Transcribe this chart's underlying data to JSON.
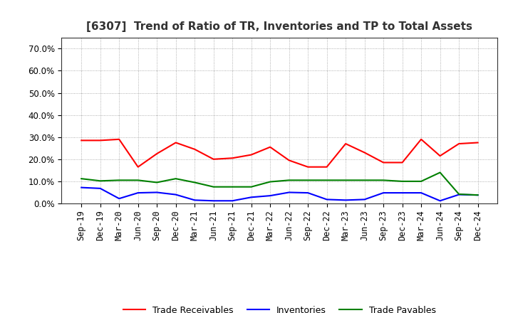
{
  "title": "[6307]  Trend of Ratio of TR, Inventories and TP to Total Assets",
  "labels": [
    "Sep-19",
    "Dec-19",
    "Mar-20",
    "Jun-20",
    "Sep-20",
    "Dec-20",
    "Mar-21",
    "Jun-21",
    "Sep-21",
    "Dec-21",
    "Mar-22",
    "Jun-22",
    "Sep-22",
    "Dec-22",
    "Mar-23",
    "Jun-23",
    "Sep-23",
    "Dec-23",
    "Mar-24",
    "Jun-24",
    "Sep-24",
    "Dec-24"
  ],
  "trade_receivables": [
    0.285,
    0.285,
    0.29,
    0.165,
    0.225,
    0.275,
    0.245,
    0.2,
    0.205,
    0.22,
    0.255,
    0.195,
    0.165,
    0.165,
    0.27,
    0.23,
    0.185,
    0.185,
    0.29,
    0.215,
    0.27,
    0.275
  ],
  "inventories": [
    0.072,
    0.068,
    0.022,
    0.048,
    0.05,
    0.04,
    0.015,
    0.012,
    0.012,
    0.028,
    0.035,
    0.05,
    0.048,
    0.018,
    0.015,
    0.018,
    0.048,
    0.048,
    0.048,
    0.012,
    0.04,
    0.038
  ],
  "trade_payables": [
    0.112,
    0.102,
    0.105,
    0.105,
    0.095,
    0.112,
    0.095,
    0.075,
    0.075,
    0.075,
    0.098,
    0.105,
    0.105,
    0.105,
    0.105,
    0.105,
    0.105,
    0.1,
    0.1,
    0.14,
    0.042,
    0.038
  ],
  "tr_color": "#ff0000",
  "inv_color": "#0000ff",
  "tp_color": "#008000",
  "ylim": [
    0.0,
    0.75
  ],
  "yticks": [
    0.0,
    0.1,
    0.2,
    0.3,
    0.4,
    0.5,
    0.6,
    0.7
  ],
  "background_color": "#ffffff",
  "grid_color": "#999999",
  "title_fontsize": 11,
  "legend_fontsize": 9,
  "tick_fontsize": 8.5
}
